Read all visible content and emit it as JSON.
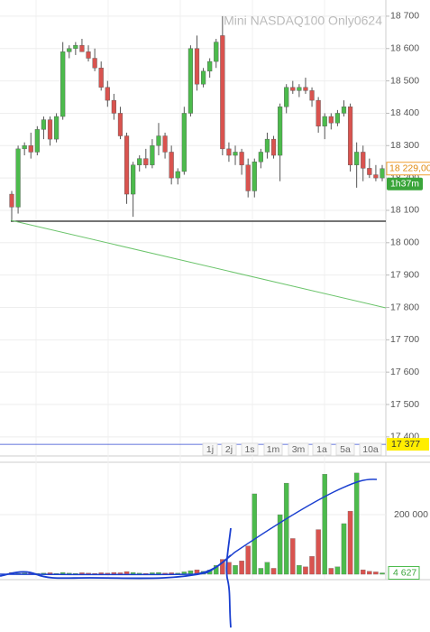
{
  "chart_data": [
    {
      "type": "candlestick",
      "title": "Mini NASDAQ100 Only0624",
      "up_color": "#4cbb4c",
      "down_color": "#d9534f",
      "open": [
        18150,
        18110,
        18290,
        18300,
        18280,
        18350,
        18380,
        18320,
        18390,
        18590,
        18600,
        18610,
        18590,
        18570,
        18540,
        18480,
        18440,
        18400,
        18330,
        18150,
        18240,
        18260,
        18240,
        18300,
        18330,
        18280,
        18200,
        18220,
        18400,
        18600,
        18490,
        18530,
        18560,
        18640,
        18290,
        18270,
        18280,
        18240,
        18160,
        18250,
        18280,
        18320,
        18270,
        18420,
        18480,
        18470,
        18480,
        18470,
        18440,
        18360,
        18390,
        18370,
        18400,
        18420,
        18240,
        18280,
        18230,
        18210,
        18200
      ],
      "high": [
        18160,
        18300,
        18310,
        18340,
        18360,
        18390,
        18390,
        18400,
        18620,
        18610,
        18620,
        18630,
        18610,
        18600,
        18560,
        18500,
        18460,
        18420,
        18340,
        18250,
        18270,
        18290,
        18320,
        18370,
        18340,
        18300,
        18230,
        18420,
        18610,
        18640,
        18540,
        18570,
        18630,
        18700,
        18310,
        18300,
        18290,
        18260,
        18260,
        18290,
        18340,
        18330,
        18430,
        18490,
        18500,
        18490,
        18510,
        18480,
        18450,
        18400,
        18400,
        18410,
        18440,
        18430,
        18310,
        18300,
        18260,
        18240,
        18240
      ],
      "low": [
        18070,
        18090,
        18270,
        18260,
        18270,
        18320,
        18300,
        18310,
        18380,
        18570,
        18580,
        18590,
        18560,
        18530,
        18470,
        18420,
        18380,
        18320,
        18120,
        18080,
        18220,
        18230,
        18230,
        18270,
        18260,
        18180,
        18180,
        18210,
        18390,
        18470,
        18480,
        18510,
        18540,
        18270,
        18250,
        18240,
        18210,
        18140,
        18140,
        18230,
        18260,
        18260,
        18190,
        18400,
        18460,
        18450,
        18460,
        18420,
        18340,
        18320,
        18350,
        18360,
        18390,
        18220,
        18170,
        18190,
        18200,
        18190,
        18190
      ],
      "close": [
        18110,
        18290,
        18300,
        18280,
        18350,
        18380,
        18320,
        18390,
        18590,
        18600,
        18610,
        18590,
        18570,
        18540,
        18480,
        18440,
        18400,
        18330,
        18150,
        18240,
        18260,
        18240,
        18300,
        18330,
        18280,
        18200,
        18220,
        18400,
        18600,
        18490,
        18530,
        18560,
        18620,
        18290,
        18270,
        18280,
        18240,
        18160,
        18250,
        18280,
        18320,
        18270,
        18420,
        18480,
        18470,
        18480,
        18470,
        18440,
        18360,
        18390,
        18370,
        18400,
        18420,
        18240,
        18280,
        18230,
        18210,
        18200,
        18229
      ],
      "ylim": [
        17341,
        18750
      ],
      "yticks": [
        {
          "value": 17400,
          "label": "17 400"
        },
        {
          "value": 17500,
          "label": "17 500"
        },
        {
          "value": 17600,
          "label": "17 600"
        },
        {
          "value": 17700,
          "label": "17 700"
        },
        {
          "value": 17800,
          "label": "17 800"
        },
        {
          "value": 17900,
          "label": "17 900"
        },
        {
          "value": 18000,
          "label": "18 000"
        },
        {
          "value": 18100,
          "label": "18 100"
        },
        {
          "value": 18200,
          "label": "18 200"
        },
        {
          "value": 18300,
          "label": "18 300"
        },
        {
          "value": 18400,
          "label": "18 400"
        },
        {
          "value": 18500,
          "label": "18 500"
        },
        {
          "value": 18600,
          "label": "18 600"
        },
        {
          "value": 18700,
          "label": "18 700"
        }
      ],
      "grid": true,
      "last_price": {
        "value": 18229,
        "label": "18 229,00"
      },
      "timer": "1h37m",
      "price_line": {
        "value": 17377,
        "label": "17 377"
      },
      "range_buttons": [
        "1j",
        "2j",
        "1s",
        "1m",
        "3m",
        "1a",
        "5a",
        "10a"
      ]
    },
    {
      "type": "bar",
      "values": [
        6000,
        3000,
        4000,
        5000,
        3000,
        4000,
        5000,
        3000,
        6000,
        4000,
        3000,
        5000,
        4000,
        3000,
        5000,
        4000,
        6000,
        5000,
        9000,
        6000,
        4000,
        3000,
        5000,
        6000,
        4000,
        5000,
        4000,
        8000,
        12000,
        15000,
        10000,
        14000,
        30000,
        50000,
        40000,
        30000,
        45000,
        95000,
        270000,
        20000,
        40000,
        20000,
        200000,
        306000,
        120000,
        30000,
        25000,
        60000,
        150000,
        336000,
        20000,
        25000,
        170000,
        212000,
        340000,
        15000,
        10000,
        8000,
        4627
      ],
      "ylim": [
        -12000,
        376000
      ],
      "yticks": [
        {
          "value": 200000,
          "label": "200 000"
        }
      ],
      "last_volume": {
        "value": 4627,
        "label": "4 627"
      }
    }
  ]
}
